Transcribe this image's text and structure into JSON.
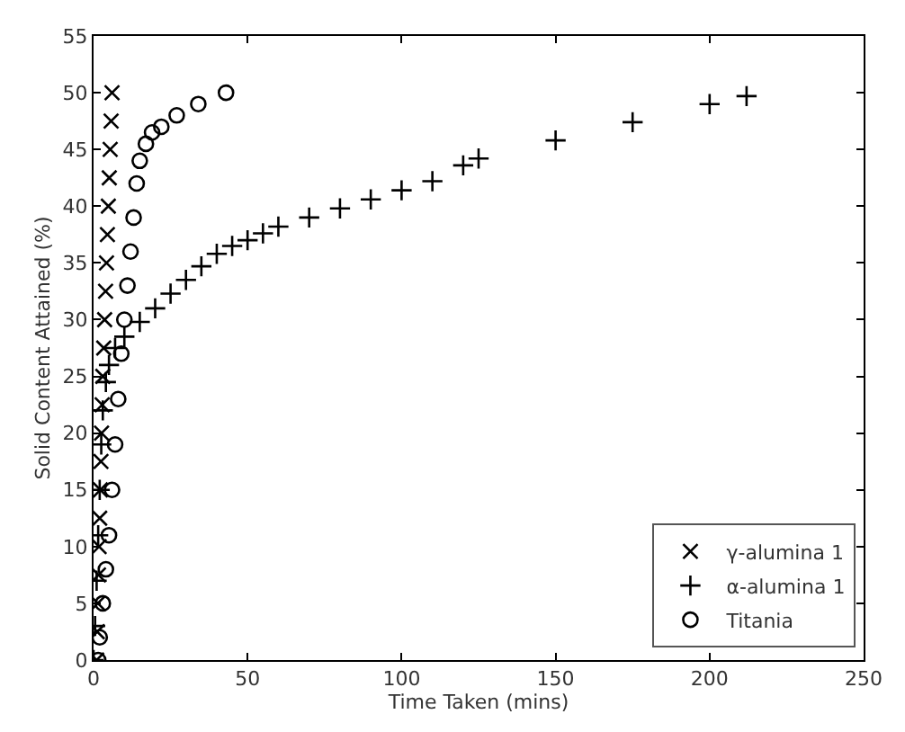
{
  "chart_data": {
    "type": "scatter",
    "xlabel": "Time Taken (mins)",
    "ylabel": "Solid Content Attained (%)",
    "xlim": [
      0,
      250
    ],
    "xticks": [
      0,
      50,
      100,
      150,
      200,
      250
    ],
    "ylim": [
      0,
      55
    ],
    "yticks": [
      0,
      5,
      10,
      15,
      20,
      25,
      30,
      35,
      40,
      45,
      50,
      55
    ],
    "legend": "bottom right",
    "series": [
      {
        "name": "γ-alumina 1",
        "color": "#000000",
        "marker": "x",
        "x": [
          1,
          1.2,
          1.4,
          1.6,
          1.8,
          2,
          2.2,
          2.4,
          2.6,
          2.8,
          3,
          3.3,
          3.6,
          3.9,
          4.2,
          4.5,
          4.8,
          5.1,
          5.4,
          5.7,
          6
        ],
        "values": [
          0,
          2.5,
          5,
          7.5,
          10,
          12.5,
          15,
          17.5,
          20,
          22.5,
          25,
          27.5,
          30,
          32.5,
          35,
          37.5,
          40,
          42.5,
          45,
          47.5,
          50
        ]
      },
      {
        "name": "α-alumina 1",
        "color": "#000000",
        "marker": "cross",
        "x": [
          0,
          0.5,
          1,
          1.5,
          2,
          2.5,
          3,
          4,
          5,
          7,
          10,
          15,
          20,
          25,
          30,
          35,
          40,
          45,
          50,
          55,
          60,
          70,
          80,
          90,
          100,
          110,
          120,
          125,
          150,
          175,
          200,
          212
        ],
        "values": [
          0,
          3,
          7,
          11,
          15,
          19,
          22,
          24.5,
          26,
          27.5,
          28.5,
          29.8,
          31,
          32.3,
          33.5,
          34.7,
          35.8,
          36.5,
          37,
          37.6,
          38.2,
          39,
          39.8,
          40.6,
          41.4,
          42.2,
          43.6,
          44.2,
          45.8,
          47.4,
          49,
          49.7
        ]
      },
      {
        "name": "Titania",
        "color": "#000000",
        "marker": "circle",
        "x": [
          1.5,
          2,
          3,
          4,
          5,
          6,
          7,
          8,
          9,
          10,
          11,
          12,
          13,
          14,
          15,
          17,
          19,
          22,
          27,
          34,
          43
        ],
        "values": [
          0,
          2,
          5,
          8,
          11,
          15,
          19,
          23,
          27,
          30,
          33,
          36,
          39,
          42,
          44,
          45.5,
          46.5,
          47,
          48,
          49,
          50
        ]
      }
    ]
  }
}
